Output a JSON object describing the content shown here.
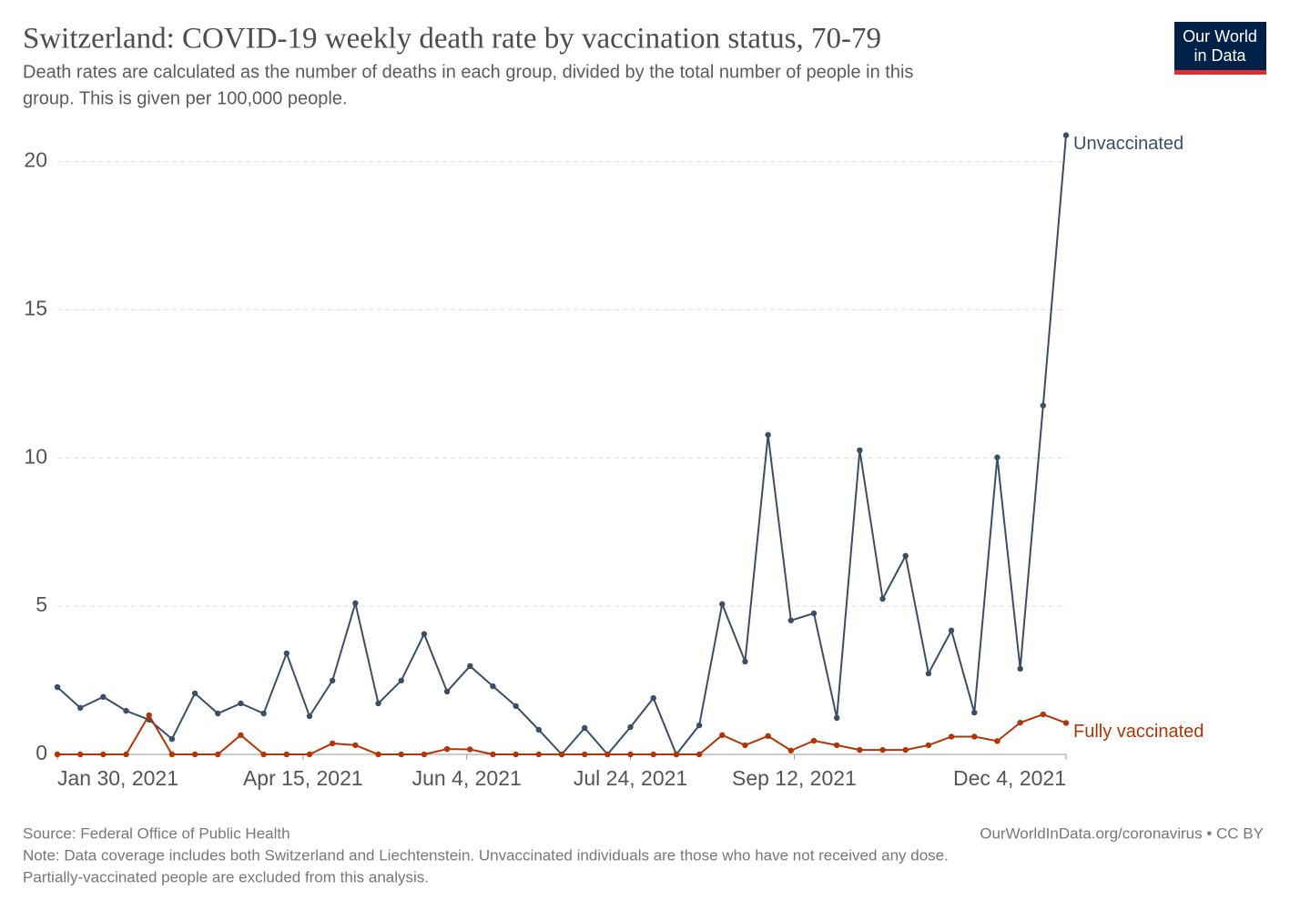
{
  "chart_data": {
    "type": "line",
    "title": "Switzerland: COVID-19 weekly death rate by vaccination status, 70-79",
    "subtitle": [
      "Death rates are calculated as the number of deaths in each group, divided by the total number of people in this",
      "group. This is given per 100,000 people."
    ],
    "logo": [
      "Our World",
      "in Data"
    ],
    "source": "Source: Federal Office of Public Health",
    "credit": "OurWorldInData.org/coronavirus • CC BY",
    "note": [
      "Note: Data coverage includes both Switzerland and Liechtenstein. Unvaccinated individuals are those who have not received any dose.",
      "Partially-vaccinated people are excluded from this analysis."
    ],
    "x": [
      "2021-01-30",
      "2021-02-06",
      "2021-02-13",
      "2021-02-20",
      "2021-02-27",
      "2021-03-06",
      "2021-03-13",
      "2021-03-20",
      "2021-03-27",
      "2021-04-03",
      "2021-04-10",
      "2021-04-17",
      "2021-04-24",
      "2021-05-01",
      "2021-05-08",
      "2021-05-15",
      "2021-05-22",
      "2021-05-29",
      "2021-06-05",
      "2021-06-12",
      "2021-06-19",
      "2021-06-26",
      "2021-07-03",
      "2021-07-10",
      "2021-07-17",
      "2021-07-24",
      "2021-07-31",
      "2021-08-07",
      "2021-08-14",
      "2021-08-21",
      "2021-08-28",
      "2021-09-04",
      "2021-09-11",
      "2021-09-18",
      "2021-09-25",
      "2021-10-02",
      "2021-10-09",
      "2021-10-16",
      "2021-10-23",
      "2021-10-30",
      "2021-11-06",
      "2021-11-13",
      "2021-11-20",
      "2021-11-27",
      "2021-12-04"
    ],
    "series": [
      {
        "name": "Unvaccinated",
        "color": "#3c4e66",
        "values": [
          2.27,
          1.57,
          1.94,
          1.47,
          1.17,
          0.52,
          2.06,
          1.38,
          1.72,
          1.38,
          3.41,
          1.29,
          2.49,
          5.1,
          1.72,
          2.49,
          4.06,
          2.12,
          2.98,
          2.3,
          1.63,
          0.83,
          0,
          0.89,
          0,
          0.92,
          1.9,
          0,
          0.98,
          5.07,
          3.13,
          10.78,
          4.52,
          4.76,
          1.23,
          10.26,
          5.25,
          6.7,
          2.73,
          4.18,
          1.41,
          10.02,
          2.89,
          11.77,
          20.89
        ]
      },
      {
        "name": "Fully vaccinated",
        "color": "#b13507",
        "values": [
          0,
          0,
          0,
          0,
          1.32,
          0,
          0,
          0,
          0.65,
          0,
          0,
          0,
          0.37,
          0.31,
          0,
          0,
          0,
          0.18,
          0.17,
          0,
          0,
          0,
          0,
          0,
          0,
          0,
          0,
          0,
          0,
          0.65,
          0.31,
          0.62,
          0.13,
          0.46,
          0.31,
          0.15,
          0.15,
          0.15,
          0.31,
          0.6,
          0.6,
          0.45,
          1.07,
          1.35,
          1.06
        ]
      }
    ],
    "xlim": [
      "2021-01-30",
      "2021-12-04"
    ],
    "xticks": [
      {
        "value": "2021-01-30",
        "label": "Jan 30, 2021"
      },
      {
        "value": "2021-04-15",
        "label": "Apr 15, 2021"
      },
      {
        "value": "2021-06-04",
        "label": "Jun 4, 2021"
      },
      {
        "value": "2021-07-24",
        "label": "Jul 24, 2021"
      },
      {
        "value": "2021-09-12",
        "label": "Sep 12, 2021"
      },
      {
        "value": "2021-12-04",
        "label": "Dec 4, 2021"
      }
    ],
    "ylim": [
      0,
      21
    ],
    "yticks": [
      0,
      5,
      10,
      15,
      20
    ],
    "grid": true
  }
}
